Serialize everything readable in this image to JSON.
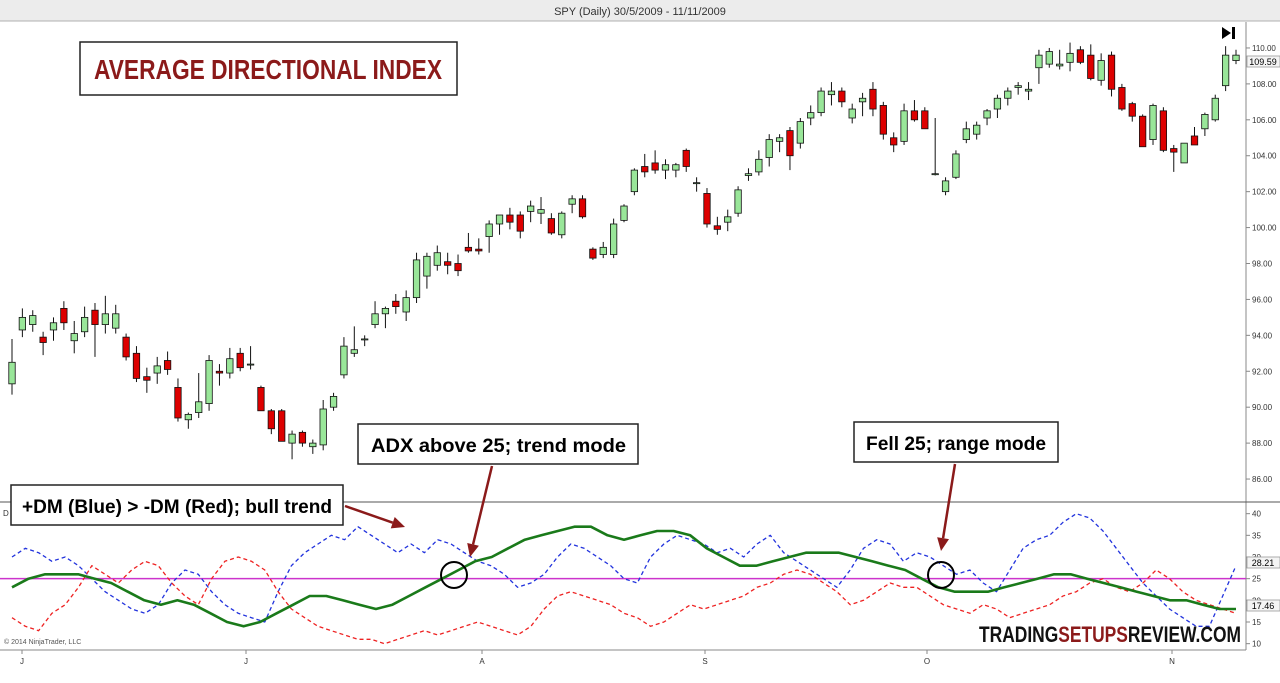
{
  "window_title": "SPY (Daily)  30/5/2009 - 11/11/2009",
  "overlay_title": "AVERAGE DIRECTIONAL INDEX",
  "annotations": {
    "dm": "+DM (Blue) > -DM (Red); bull trend",
    "adx_trend": "ADX above 25; trend mode",
    "adx_range": "Fell 25; range mode"
  },
  "copyright": "© 2014 NinjaTrader, LLC",
  "watermark": {
    "part1": "TRADING",
    "part2": "SETUPS",
    "part3": "REVIEW.COM"
  },
  "panel_label": "D",
  "goto_end_icon": "skip-to-end-icon",
  "colors": {
    "candle_up": "#99e699",
    "candle_down": "#dd0000",
    "plus_di": "#2233dd",
    "minus_di": "#ee2222",
    "adx": "#1a7a1a",
    "threshold": "#cc33cc",
    "annotation_text": "#8b1a1a",
    "arrow": "#8b1a1a"
  },
  "chart_data": [
    {
      "type": "candlestick",
      "title": "SPY (Daily)  30/5/2009 - 11/11/2009",
      "ylim": [
        85,
        111
      ],
      "y_ticks": [
        "86.00",
        "88.00",
        "90.00",
        "92.00",
        "94.00",
        "96.00",
        "98.00",
        "100.00",
        "102.00",
        "104.00",
        "106.00",
        "108.00",
        "110.00"
      ],
      "last_price_label": "109.59",
      "grid": false,
      "candles": [
        {
          "o": 91.3,
          "h": 93.8,
          "l": 90.7,
          "c": 92.5
        },
        {
          "o": 94.3,
          "h": 95.5,
          "l": 93.9,
          "c": 95.0
        },
        {
          "o": 94.6,
          "h": 95.4,
          "l": 94.2,
          "c": 95.1
        },
        {
          "o": 93.9,
          "h": 94.2,
          "l": 92.9,
          "c": 93.6
        },
        {
          "o": 94.3,
          "h": 95.0,
          "l": 93.7,
          "c": 94.7
        },
        {
          "o": 95.5,
          "h": 95.9,
          "l": 94.3,
          "c": 94.7
        },
        {
          "o": 93.7,
          "h": 94.8,
          "l": 93.0,
          "c": 94.1
        },
        {
          "o": 94.2,
          "h": 95.6,
          "l": 93.9,
          "c": 95.0
        },
        {
          "o": 95.4,
          "h": 95.8,
          "l": 92.8,
          "c": 94.6
        },
        {
          "o": 94.6,
          "h": 96.2,
          "l": 94.1,
          "c": 95.2
        },
        {
          "o": 94.4,
          "h": 95.7,
          "l": 94.1,
          "c": 95.2
        },
        {
          "o": 93.9,
          "h": 94.1,
          "l": 92.6,
          "c": 92.8
        },
        {
          "o": 93.0,
          "h": 93.4,
          "l": 91.4,
          "c": 91.6
        },
        {
          "o": 91.7,
          "h": 92.2,
          "l": 90.8,
          "c": 91.5
        },
        {
          "o": 91.9,
          "h": 92.8,
          "l": 91.3,
          "c": 92.3
        },
        {
          "o": 92.6,
          "h": 93.1,
          "l": 91.8,
          "c": 92.1
        },
        {
          "o": 91.1,
          "h": 91.6,
          "l": 89.2,
          "c": 89.4
        },
        {
          "o": 89.3,
          "h": 89.7,
          "l": 88.8,
          "c": 89.6
        },
        {
          "o": 89.7,
          "h": 91.9,
          "l": 89.4,
          "c": 90.3
        },
        {
          "o": 90.2,
          "h": 92.9,
          "l": 89.8,
          "c": 92.6
        },
        {
          "o": 92.0,
          "h": 92.4,
          "l": 91.2,
          "c": 91.9
        },
        {
          "o": 91.9,
          "h": 93.3,
          "l": 91.6,
          "c": 92.7
        },
        {
          "o": 93.0,
          "h": 93.3,
          "l": 92.0,
          "c": 92.2
        },
        {
          "o": 92.4,
          "h": 93.4,
          "l": 92.1,
          "c": 92.4
        },
        {
          "o": 91.1,
          "h": 91.2,
          "l": 89.8,
          "c": 89.8
        },
        {
          "o": 89.8,
          "h": 89.9,
          "l": 88.5,
          "c": 88.8
        },
        {
          "o": 89.8,
          "h": 89.9,
          "l": 88.3,
          "c": 88.1
        },
        {
          "o": 88.0,
          "h": 88.7,
          "l": 87.1,
          "c": 88.5
        },
        {
          "o": 88.6,
          "h": 88.7,
          "l": 87.8,
          "c": 88.0
        },
        {
          "o": 87.8,
          "h": 88.2,
          "l": 87.4,
          "c": 88.0
        },
        {
          "o": 87.9,
          "h": 90.4,
          "l": 87.6,
          "c": 89.9
        },
        {
          "o": 90.0,
          "h": 90.8,
          "l": 89.8,
          "c": 90.6
        },
        {
          "o": 91.8,
          "h": 93.9,
          "l": 91.6,
          "c": 93.4
        },
        {
          "o": 93.0,
          "h": 94.5,
          "l": 92.8,
          "c": 93.2
        },
        {
          "o": 93.8,
          "h": 94.0,
          "l": 93.4,
          "c": 93.8
        },
        {
          "o": 94.6,
          "h": 95.9,
          "l": 94.4,
          "c": 95.2
        },
        {
          "o": 95.2,
          "h": 95.6,
          "l": 94.4,
          "c": 95.5
        },
        {
          "o": 95.9,
          "h": 96.3,
          "l": 95.2,
          "c": 95.6
        },
        {
          "o": 95.3,
          "h": 96.5,
          "l": 94.8,
          "c": 96.1
        },
        {
          "o": 96.1,
          "h": 98.6,
          "l": 95.8,
          "c": 98.2
        },
        {
          "o": 97.3,
          "h": 98.6,
          "l": 96.6,
          "c": 98.4
        },
        {
          "o": 97.9,
          "h": 99.0,
          "l": 97.6,
          "c": 98.6
        },
        {
          "o": 98.1,
          "h": 98.6,
          "l": 97.4,
          "c": 97.9
        },
        {
          "o": 98.0,
          "h": 98.5,
          "l": 97.3,
          "c": 97.6
        },
        {
          "o": 98.9,
          "h": 99.7,
          "l": 98.6,
          "c": 98.7
        },
        {
          "o": 98.8,
          "h": 99.4,
          "l": 98.5,
          "c": 98.7
        },
        {
          "o": 99.5,
          "h": 100.4,
          "l": 98.6,
          "c": 100.2
        },
        {
          "o": 100.2,
          "h": 100.7,
          "l": 99.6,
          "c": 100.7
        },
        {
          "o": 100.7,
          "h": 101.1,
          "l": 99.9,
          "c": 100.3
        },
        {
          "o": 100.7,
          "h": 100.9,
          "l": 99.4,
          "c": 99.8
        },
        {
          "o": 100.9,
          "h": 101.5,
          "l": 100.3,
          "c": 101.2
        },
        {
          "o": 100.8,
          "h": 101.7,
          "l": 100.2,
          "c": 101.0
        },
        {
          "o": 100.5,
          "h": 100.8,
          "l": 99.6,
          "c": 99.7
        },
        {
          "o": 99.6,
          "h": 100.9,
          "l": 99.4,
          "c": 100.8
        },
        {
          "o": 101.3,
          "h": 101.8,
          "l": 100.8,
          "c": 101.6
        },
        {
          "o": 101.6,
          "h": 101.8,
          "l": 100.5,
          "c": 100.6
        },
        {
          "o": 98.8,
          "h": 98.9,
          "l": 98.2,
          "c": 98.3
        },
        {
          "o": 98.5,
          "h": 99.2,
          "l": 98.3,
          "c": 98.9
        },
        {
          "o": 98.5,
          "h": 100.5,
          "l": 98.3,
          "c": 100.2
        },
        {
          "o": 100.4,
          "h": 101.3,
          "l": 100.3,
          "c": 101.2
        },
        {
          "o": 102.0,
          "h": 103.3,
          "l": 101.8,
          "c": 103.2
        },
        {
          "o": 103.4,
          "h": 104.1,
          "l": 102.8,
          "c": 103.1
        },
        {
          "o": 103.6,
          "h": 104.3,
          "l": 103.0,
          "c": 103.2
        },
        {
          "o": 103.2,
          "h": 103.8,
          "l": 102.7,
          "c": 103.5
        },
        {
          "o": 103.2,
          "h": 103.6,
          "l": 102.8,
          "c": 103.5
        },
        {
          "o": 104.3,
          "h": 104.4,
          "l": 103.1,
          "c": 103.4
        },
        {
          "o": 102.5,
          "h": 102.8,
          "l": 102.0,
          "c": 102.5
        },
        {
          "o": 101.9,
          "h": 102.2,
          "l": 100.0,
          "c": 100.2
        },
        {
          "o": 100.1,
          "h": 100.6,
          "l": 99.6,
          "c": 99.9
        },
        {
          "o": 100.3,
          "h": 101.0,
          "l": 99.8,
          "c": 100.6
        },
        {
          "o": 100.8,
          "h": 102.3,
          "l": 100.6,
          "c": 102.1
        },
        {
          "o": 102.9,
          "h": 103.3,
          "l": 102.6,
          "c": 103.0
        },
        {
          "o": 103.1,
          "h": 104.3,
          "l": 102.9,
          "c": 103.8
        },
        {
          "o": 103.9,
          "h": 105.2,
          "l": 103.4,
          "c": 104.9
        },
        {
          "o": 104.8,
          "h": 105.2,
          "l": 104.2,
          "c": 105.0
        },
        {
          "o": 105.4,
          "h": 105.6,
          "l": 103.2,
          "c": 104.0
        },
        {
          "o": 104.7,
          "h": 106.1,
          "l": 104.4,
          "c": 105.9
        },
        {
          "o": 106.1,
          "h": 106.8,
          "l": 105.7,
          "c": 106.4
        },
        {
          "o": 106.4,
          "h": 107.8,
          "l": 106.2,
          "c": 107.6
        },
        {
          "o": 107.4,
          "h": 108.1,
          "l": 106.8,
          "c": 107.6
        },
        {
          "o": 107.6,
          "h": 107.8,
          "l": 106.7,
          "c": 107.0
        },
        {
          "o": 106.1,
          "h": 106.9,
          "l": 105.8,
          "c": 106.6
        },
        {
          "o": 107.0,
          "h": 107.5,
          "l": 106.2,
          "c": 107.2
        },
        {
          "o": 107.7,
          "h": 108.1,
          "l": 106.2,
          "c": 106.6
        },
        {
          "o": 106.8,
          "h": 107.0,
          "l": 104.9,
          "c": 105.2
        },
        {
          "o": 105.0,
          "h": 105.3,
          "l": 104.2,
          "c": 104.6
        },
        {
          "o": 104.8,
          "h": 106.9,
          "l": 104.6,
          "c": 106.5
        },
        {
          "o": 106.5,
          "h": 107.1,
          "l": 105.9,
          "c": 106.0
        },
        {
          "o": 106.5,
          "h": 106.7,
          "l": 105.5,
          "c": 105.5
        },
        {
          "o": 103.0,
          "h": 106.1,
          "l": 102.9,
          "c": 103.0
        },
        {
          "o": 102.0,
          "h": 102.8,
          "l": 101.8,
          "c": 102.6
        },
        {
          "o": 102.8,
          "h": 104.3,
          "l": 102.7,
          "c": 104.1
        },
        {
          "o": 104.9,
          "h": 105.9,
          "l": 104.7,
          "c": 105.5
        },
        {
          "o": 105.2,
          "h": 105.9,
          "l": 104.9,
          "c": 105.7
        },
        {
          "o": 106.1,
          "h": 106.6,
          "l": 105.7,
          "c": 106.5
        },
        {
          "o": 106.6,
          "h": 107.4,
          "l": 106.1,
          "c": 107.2
        },
        {
          "o": 107.2,
          "h": 107.8,
          "l": 106.8,
          "c": 107.6
        },
        {
          "o": 107.8,
          "h": 108.1,
          "l": 107.4,
          "c": 107.9
        },
        {
          "o": 107.6,
          "h": 108.1,
          "l": 107.1,
          "c": 107.7
        },
        {
          "o": 108.9,
          "h": 109.9,
          "l": 108.0,
          "c": 109.6
        },
        {
          "o": 109.1,
          "h": 110.0,
          "l": 108.9,
          "c": 109.8
        },
        {
          "o": 109.0,
          "h": 109.9,
          "l": 108.8,
          "c": 109.1
        },
        {
          "o": 109.2,
          "h": 110.3,
          "l": 108.7,
          "c": 109.7
        },
        {
          "o": 109.9,
          "h": 110.1,
          "l": 109.1,
          "c": 109.2
        },
        {
          "o": 109.6,
          "h": 110.2,
          "l": 108.2,
          "c": 108.3
        },
        {
          "o": 108.2,
          "h": 109.7,
          "l": 107.9,
          "c": 109.3
        },
        {
          "o": 109.6,
          "h": 109.8,
          "l": 107.3,
          "c": 107.7
        },
        {
          "o": 107.8,
          "h": 108.0,
          "l": 106.5,
          "c": 106.6
        },
        {
          "o": 106.9,
          "h": 107.0,
          "l": 105.9,
          "c": 106.2
        },
        {
          "o": 106.2,
          "h": 106.3,
          "l": 104.6,
          "c": 104.5
        },
        {
          "o": 104.9,
          "h": 106.9,
          "l": 104.6,
          "c": 106.8
        },
        {
          "o": 106.5,
          "h": 106.7,
          "l": 104.2,
          "c": 104.3
        },
        {
          "o": 104.4,
          "h": 104.6,
          "l": 103.1,
          "c": 104.2
        },
        {
          "o": 103.6,
          "h": 104.6,
          "l": 103.6,
          "c": 104.7
        },
        {
          "o": 105.1,
          "h": 105.6,
          "l": 104.7,
          "c": 104.6
        },
        {
          "o": 105.5,
          "h": 106.4,
          "l": 105.1,
          "c": 106.3
        },
        {
          "o": 106.0,
          "h": 107.4,
          "l": 105.9,
          "c": 107.2
        },
        {
          "o": 107.9,
          "h": 110.1,
          "l": 107.6,
          "c": 109.6
        },
        {
          "o": 109.3,
          "h": 109.9,
          "l": 109.1,
          "c": 109.6
        }
      ]
    },
    {
      "type": "line",
      "ylim": [
        9,
        42
      ],
      "y_ticks": [
        "10",
        "15",
        "20",
        "25",
        "30",
        "35",
        "40"
      ],
      "threshold": 25,
      "x_tick_labels": [
        "J",
        "J",
        "A",
        "S",
        "O",
        "N"
      ],
      "last_value_labels": [
        "28.21",
        "17.46"
      ],
      "series": [
        {
          "name": "+DM (Blue)",
          "values": [
            30,
            32,
            31,
            29,
            30,
            28,
            25,
            22,
            20,
            18,
            17,
            19,
            24,
            27,
            26,
            22,
            19,
            17,
            16,
            15,
            22,
            28,
            31,
            33,
            35,
            34,
            37,
            35,
            33,
            31,
            33,
            31,
            34,
            33,
            31,
            29,
            28,
            26,
            23,
            24,
            26,
            30,
            33,
            32,
            30,
            28,
            25,
            24,
            30,
            33,
            35,
            34,
            33,
            31,
            32,
            30,
            33,
            35,
            31,
            29,
            27,
            25,
            23,
            27,
            32,
            34,
            33,
            29,
            31,
            30,
            28,
            26,
            27,
            24,
            22,
            27,
            32,
            34,
            35,
            38,
            40,
            39,
            36,
            32,
            28,
            24,
            21,
            18,
            16,
            14,
            14,
            21,
            28
          ]
        },
        {
          "name": "-DM (Red)",
          "values": [
            16,
            14,
            13,
            17,
            19,
            23,
            28,
            26,
            24,
            27,
            29,
            28,
            24,
            21,
            19,
            25,
            29,
            30,
            29,
            27,
            22,
            18,
            16,
            14,
            13,
            12,
            11,
            11,
            10,
            11,
            12,
            13,
            12,
            13,
            14,
            15,
            14,
            13,
            12,
            14,
            18,
            21,
            22,
            21,
            20,
            19,
            17,
            16,
            14,
            15,
            17,
            19,
            18,
            19,
            20,
            21,
            23,
            24,
            26,
            27,
            26,
            24,
            22,
            19,
            20,
            22,
            24,
            23,
            23,
            21,
            19,
            18,
            17,
            19,
            18,
            16,
            17,
            18,
            19,
            21,
            22,
            24,
            25,
            23,
            22,
            24,
            27,
            25,
            22,
            20,
            19,
            18,
            17
          ]
        },
        {
          "name": "ADX",
          "values": [
            23,
            25,
            26,
            26,
            26,
            25,
            24,
            22,
            20,
            19,
            20,
            19,
            17,
            15,
            14,
            15,
            17,
            19,
            21,
            21,
            20,
            19,
            18,
            19,
            21,
            23,
            25,
            27,
            29,
            30,
            32,
            34,
            35,
            36,
            37,
            37,
            35,
            34,
            35,
            36,
            36,
            35,
            32,
            30,
            28,
            28,
            29,
            30,
            31,
            31,
            31,
            30,
            29,
            28,
            27,
            25,
            23,
            22,
            22,
            22,
            23,
            24,
            25,
            26,
            26,
            25,
            24,
            23,
            22,
            21,
            20,
            20,
            19,
            18,
            18
          ]
        }
      ]
    }
  ]
}
